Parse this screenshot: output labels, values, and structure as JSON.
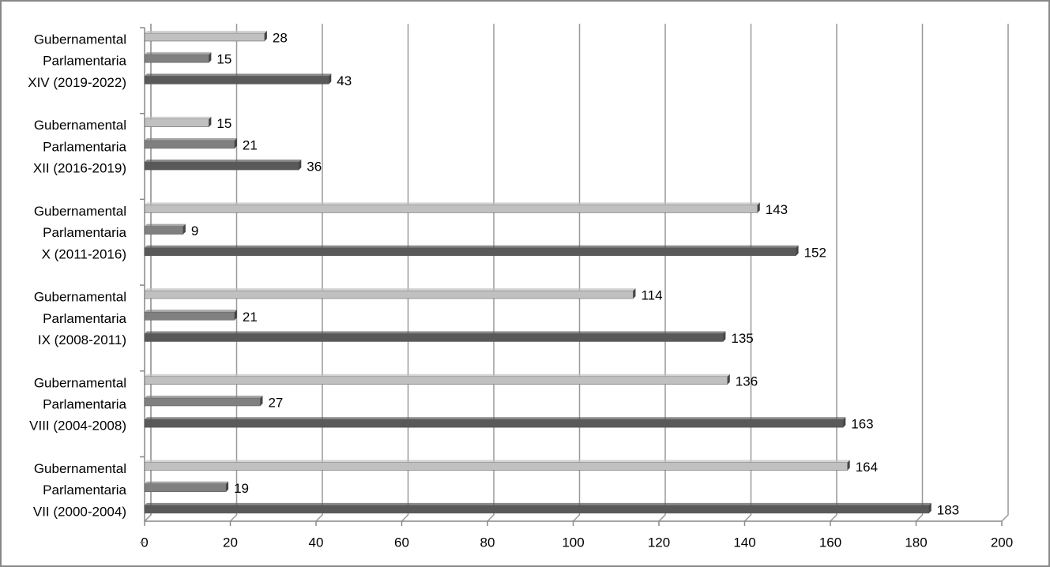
{
  "chart_data": {
    "type": "bar",
    "orientation": "horizontal",
    "categories": [
      "Gubernamental",
      "Parlamentaria",
      "XIV (2019-2022)",
      "Gubernamental",
      "Parlamentaria",
      "XII (2016-2019)",
      "Gubernamental",
      "Parlamentaria",
      "X (2011-2016)",
      "Gubernamental",
      "Parlamentaria",
      "IX (2008-2011)",
      "Gubernamental",
      "Parlamentaria",
      "VIII (2004-2008)",
      "Gubernamental",
      "Parlamentaria",
      "VII (2000-2004)"
    ],
    "values": [
      28,
      15,
      43,
      15,
      21,
      36,
      143,
      9,
      152,
      114,
      21,
      135,
      136,
      27,
      163,
      164,
      19,
      183
    ],
    "colors": [
      "#c0c0c0",
      "#808080",
      "#595959",
      "#c0c0c0",
      "#808080",
      "#595959",
      "#c0c0c0",
      "#808080",
      "#595959",
      "#c0c0c0",
      "#808080",
      "#595959",
      "#c0c0c0",
      "#808080",
      "#595959",
      "#c0c0c0",
      "#808080",
      "#595959"
    ],
    "xlim": [
      0,
      200
    ],
    "xticks": [
      0,
      20,
      40,
      60,
      80,
      100,
      120,
      140,
      160,
      180,
      200
    ],
    "grid": true
  }
}
